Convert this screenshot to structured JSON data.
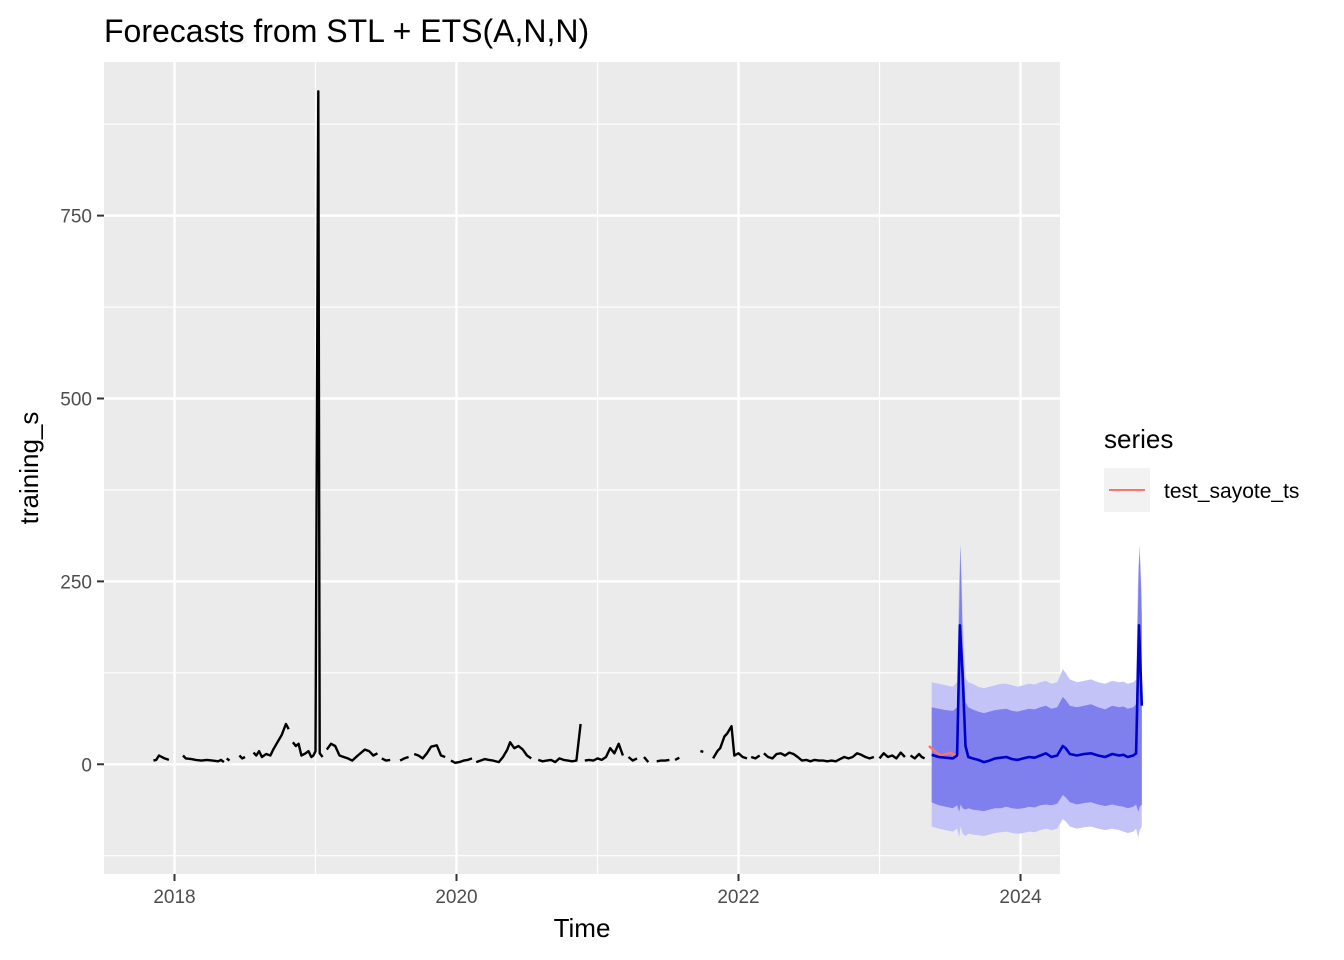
{
  "chart_data": {
    "type": "line",
    "title": "Forecasts from STL +  ETS(A,N,N)",
    "xlabel": "Time",
    "ylabel": "training_s",
    "xlim": [
      2017.5,
      2024.28
    ],
    "ylim": [
      -150,
      960
    ],
    "x_ticks": [
      2018,
      2020,
      2022,
      2024
    ],
    "x_tick_labels": [
      "2018",
      "2020",
      "2022",
      "2024"
    ],
    "y_ticks": [
      0,
      250,
      500,
      750
    ],
    "y_tick_labels": [
      "0",
      "250",
      "500",
      "750"
    ],
    "grid": true,
    "legend": {
      "title": "series",
      "position": "right",
      "entries": [
        {
          "name": "test_sayote_ts",
          "color": "#F8766D"
        }
      ]
    },
    "colors": {
      "panel": "#EBEBEB",
      "grid": "#FFFFFF",
      "history": "#000000",
      "forecast_mean": "#0000CC",
      "pi80": "#7F7FEE",
      "pi95": "#C3C3F7",
      "test": "#F8766D"
    },
    "series": [
      {
        "role": "history",
        "segments": [
          [
            [
              2017.85,
              5
            ],
            [
              2017.87,
              6
            ],
            [
              2017.89,
              12
            ],
            [
              2017.91,
              10
            ],
            [
              2017.93,
              8
            ],
            [
              2017.96,
              6
            ]
          ],
          [
            [
              2018.06,
              12
            ],
            [
              2018.08,
              8
            ],
            [
              2018.12,
              7
            ],
            [
              2018.15,
              6
            ],
            [
              2018.19,
              5
            ],
            [
              2018.23,
              6
            ],
            [
              2018.27,
              5
            ],
            [
              2018.31,
              4
            ],
            [
              2018.33,
              6
            ],
            [
              2018.35,
              3
            ]
          ],
          [
            [
              2018.37,
              8
            ],
            [
              2018.39,
              5
            ]
          ],
          [
            [
              2018.46,
              12
            ],
            [
              2018.48,
              8
            ],
            [
              2018.5,
              10
            ]
          ],
          [
            [
              2018.56,
              16
            ],
            [
              2018.58,
              12
            ],
            [
              2018.6,
              18
            ],
            [
              2018.62,
              10
            ],
            [
              2018.65,
              14
            ],
            [
              2018.68,
              12
            ],
            [
              2018.7,
              20
            ],
            [
              2018.73,
              30
            ],
            [
              2018.76,
              40
            ],
            [
              2018.79,
              55
            ],
            [
              2018.81,
              48
            ]
          ],
          [
            [
              2018.84,
              30
            ],
            [
              2018.86,
              25
            ],
            [
              2018.88,
              28
            ],
            [
              2018.9,
              12
            ],
            [
              2018.93,
              15
            ],
            [
              2018.95,
              18
            ],
            [
              2018.97,
              10
            ],
            [
              2018.985,
              12
            ],
            [
              2019.0,
              18
            ],
            [
              2019.02,
              920
            ],
            [
              2019.03,
              15
            ],
            [
              2019.05,
              10
            ]
          ],
          [
            [
              2019.08,
              20
            ],
            [
              2019.11,
              28
            ],
            [
              2019.14,
              25
            ],
            [
              2019.17,
              12
            ],
            [
              2019.2,
              10
            ],
            [
              2019.23,
              8
            ],
            [
              2019.26,
              5
            ],
            [
              2019.3,
              12
            ],
            [
              2019.35,
              20
            ],
            [
              2019.38,
              18
            ],
            [
              2019.41,
              12
            ],
            [
              2019.44,
              15
            ]
          ],
          [
            [
              2019.47,
              8
            ],
            [
              2019.5,
              5
            ],
            [
              2019.53,
              6
            ]
          ],
          [
            [
              2019.6,
              5
            ],
            [
              2019.63,
              8
            ],
            [
              2019.66,
              10
            ]
          ],
          [
            [
              2019.7,
              14
            ],
            [
              2019.73,
              12
            ],
            [
              2019.76,
              8
            ],
            [
              2019.79,
              15
            ],
            [
              2019.82,
              24
            ],
            [
              2019.86,
              26
            ],
            [
              2019.89,
              12
            ],
            [
              2019.92,
              10
            ]
          ],
          [
            [
              2019.96,
              5
            ],
            [
              2019.99,
              2
            ],
            [
              2020.02,
              3
            ],
            [
              2020.05,
              5
            ],
            [
              2020.08,
              6
            ],
            [
              2020.11,
              8
            ]
          ],
          [
            [
              2020.14,
              3
            ],
            [
              2020.17,
              5
            ],
            [
              2020.2,
              7
            ],
            [
              2020.23,
              6
            ],
            [
              2020.26,
              5
            ],
            [
              2020.3,
              3
            ],
            [
              2020.33,
              10
            ],
            [
              2020.36,
              20
            ],
            [
              2020.38,
              30
            ],
            [
              2020.41,
              22
            ],
            [
              2020.44,
              25
            ],
            [
              2020.47,
              20
            ],
            [
              2020.5,
              12
            ],
            [
              2020.53,
              8
            ]
          ],
          [
            [
              2020.58,
              6
            ],
            [
              2020.61,
              4
            ],
            [
              2020.64,
              5
            ],
            [
              2020.67,
              6
            ],
            [
              2020.7,
              3
            ],
            [
              2020.73,
              8
            ],
            [
              2020.76,
              6
            ],
            [
              2020.79,
              5
            ],
            [
              2020.82,
              4
            ],
            [
              2020.85,
              5
            ],
            [
              2020.88,
              55
            ]
          ],
          [
            [
              2020.91,
              5
            ],
            [
              2020.94,
              6
            ],
            [
              2020.97,
              5
            ],
            [
              2021.0,
              8
            ],
            [
              2021.03,
              6
            ],
            [
              2021.06,
              10
            ],
            [
              2021.09,
              22
            ],
            [
              2021.12,
              15
            ],
            [
              2021.15,
              28
            ],
            [
              2021.18,
              12
            ]
          ],
          [
            [
              2021.22,
              10
            ],
            [
              2021.25,
              5
            ],
            [
              2021.28,
              8
            ]
          ],
          [
            [
              2021.33,
              10
            ],
            [
              2021.36,
              3
            ]
          ],
          [
            [
              2021.42,
              4
            ],
            [
              2021.45,
              5
            ],
            [
              2021.48,
              5
            ],
            [
              2021.51,
              6
            ]
          ],
          [
            [
              2021.55,
              6
            ],
            [
              2021.58,
              9
            ]
          ],
          [
            [
              2021.73,
              18
            ],
            [
              2021.75,
              17
            ]
          ],
          [
            [
              2021.82,
              8
            ],
            [
              2021.85,
              18
            ],
            [
              2021.87,
              22
            ],
            [
              2021.9,
              38
            ],
            [
              2021.92,
              42
            ],
            [
              2021.95,
              52
            ],
            [
              2021.97,
              12
            ],
            [
              2022.0,
              15
            ],
            [
              2022.03,
              10
            ],
            [
              2022.06,
              8
            ]
          ],
          [
            [
              2022.09,
              10
            ],
            [
              2022.12,
              8
            ],
            [
              2022.15,
              12
            ]
          ],
          [
            [
              2022.18,
              15
            ],
            [
              2022.21,
              10
            ],
            [
              2022.24,
              8
            ],
            [
              2022.27,
              14
            ],
            [
              2022.3,
              15
            ],
            [
              2022.33,
              12
            ],
            [
              2022.36,
              16
            ],
            [
              2022.39,
              14
            ],
            [
              2022.42,
              10
            ],
            [
              2022.45,
              5
            ],
            [
              2022.48,
              6
            ],
            [
              2022.51,
              4
            ],
            [
              2022.54,
              6
            ],
            [
              2022.57,
              5
            ],
            [
              2022.6,
              5
            ],
            [
              2022.63,
              4
            ],
            [
              2022.66,
              5
            ],
            [
              2022.69,
              4
            ],
            [
              2022.72,
              7
            ],
            [
              2022.75,
              10
            ],
            [
              2022.78,
              8
            ],
            [
              2022.81,
              10
            ],
            [
              2022.84,
              15
            ],
            [
              2022.87,
              13
            ],
            [
              2022.9,
              10
            ],
            [
              2022.93,
              8
            ],
            [
              2022.96,
              10
            ]
          ],
          [
            [
              2023.0,
              8
            ],
            [
              2023.03,
              15
            ],
            [
              2023.06,
              10
            ],
            [
              2023.09,
              12
            ],
            [
              2023.12,
              8
            ],
            [
              2023.15,
              16
            ],
            [
              2023.18,
              10
            ]
          ],
          [
            [
              2023.22,
              12
            ],
            [
              2023.25,
              8
            ],
            [
              2023.28,
              14
            ],
            [
              2023.3,
              10
            ],
            [
              2023.32,
              8
            ]
          ]
        ]
      },
      {
        "name": "test_sayote_ts",
        "values": [
          [
            2023.35,
            25
          ],
          [
            2023.38,
            20
          ],
          [
            2023.41,
            15
          ],
          [
            2023.44,
            12
          ],
          [
            2023.47,
            14
          ],
          [
            2023.5,
            16
          ],
          [
            2023.53,
            13
          ],
          [
            2023.56,
            10
          ]
        ]
      },
      {
        "role": "forecast_mean",
        "values": [
          [
            2023.37,
            13
          ],
          [
            2023.42,
            10
          ],
          [
            2023.47,
            9
          ],
          [
            2023.52,
            8
          ],
          [
            2023.55,
            12
          ],
          [
            2023.57,
            190
          ],
          [
            2023.59,
            120
          ],
          [
            2023.61,
            25
          ],
          [
            2023.63,
            10
          ],
          [
            2023.66,
            8
          ],
          [
            2023.7,
            6
          ],
          [
            2023.74,
            3
          ],
          [
            2023.78,
            5
          ],
          [
            2023.82,
            8
          ],
          [
            2023.86,
            9
          ],
          [
            2023.9,
            10
          ],
          [
            2023.94,
            7
          ],
          [
            2023.98,
            6
          ],
          [
            2024.02,
            8
          ],
          [
            2024.06,
            10
          ],
          [
            2024.1,
            9
          ],
          [
            2024.14,
            12
          ],
          [
            2024.18,
            15
          ],
          [
            2024.22,
            10
          ],
          [
            2024.26,
            12
          ],
          [
            2024.3,
            25
          ],
          [
            2024.32,
            22
          ],
          [
            2024.35,
            14
          ],
          [
            2024.4,
            12
          ],
          [
            2024.45,
            14
          ],
          [
            2024.5,
            15
          ],
          [
            2024.55,
            12
          ],
          [
            2024.6,
            10
          ],
          [
            2024.65,
            14
          ],
          [
            2024.7,
            12
          ],
          [
            2024.73,
            13
          ],
          [
            2024.76,
            10
          ],
          [
            2024.8,
            12
          ],
          [
            2024.82,
            15
          ],
          [
            2024.84,
            190
          ],
          [
            2024.86,
            80
          ]
        ]
      }
    ],
    "intervals": {
      "x": [
        2023.37,
        2023.42,
        2023.47,
        2023.52,
        2023.55,
        2023.565,
        2023.575,
        2023.59,
        2023.61,
        2023.63,
        2023.66,
        2023.7,
        2023.74,
        2023.78,
        2023.82,
        2023.86,
        2023.9,
        2023.94,
        2023.98,
        2024.02,
        2024.06,
        2024.1,
        2024.14,
        2024.18,
        2024.22,
        2024.26,
        2024.3,
        2024.32,
        2024.35,
        2024.4,
        2024.45,
        2024.5,
        2024.55,
        2024.6,
        2024.65,
        2024.7,
        2024.73,
        2024.76,
        2024.8,
        2024.82,
        2024.835,
        2024.845,
        2024.86
      ],
      "lo95": [
        -85,
        -88,
        -90,
        -92,
        -88,
        -100,
        -85,
        -95,
        -98,
        -95,
        -96,
        -97,
        -98,
        -96,
        -94,
        -93,
        -92,
        -94,
        -95,
        -94,
        -92,
        -93,
        -90,
        -88,
        -90,
        -88,
        -75,
        -78,
        -85,
        -88,
        -86,
        -85,
        -88,
        -90,
        -88,
        -90,
        -92,
        -94,
        -92,
        -88,
        -100,
        -90,
        -85
      ],
      "lo80": [
        -52,
        -56,
        -58,
        -60,
        -56,
        -65,
        -55,
        -60,
        -62,
        -60,
        -62,
        -63,
        -64,
        -62,
        -60,
        -60,
        -58,
        -60,
        -61,
        -60,
        -58,
        -59,
        -56,
        -55,
        -56,
        -54,
        -42,
        -45,
        -52,
        -55,
        -53,
        -52,
        -55,
        -57,
        -55,
        -57,
        -58,
        -60,
        -58,
        -55,
        -65,
        -58,
        -55
      ],
      "hi80": [
        78,
        76,
        74,
        73,
        78,
        210,
        300,
        160,
        85,
        78,
        75,
        72,
        70,
        72,
        74,
        75,
        76,
        73,
        72,
        74,
        76,
        75,
        78,
        80,
        76,
        78,
        92,
        88,
        80,
        78,
        80,
        82,
        78,
        75,
        80,
        78,
        79,
        76,
        78,
        82,
        240,
        300,
        200
      ],
      "hi95": [
        112,
        110,
        108,
        106,
        112,
        260,
        300,
        200,
        118,
        112,
        110,
        106,
        104,
        106,
        108,
        110,
        110,
        108,
        106,
        108,
        110,
        109,
        112,
        114,
        110,
        112,
        130,
        125,
        116,
        112,
        114,
        116,
        112,
        110,
        114,
        112,
        113,
        110,
        112,
        116,
        270,
        290,
        230
      ]
    }
  }
}
